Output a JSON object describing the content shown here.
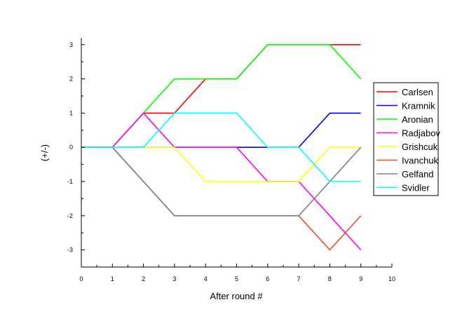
{
  "chart_data": {
    "type": "line",
    "title": "",
    "xlabel": "After round #",
    "ylabel": "(+/-)",
    "xlim": [
      0,
      10
    ],
    "ylim": [
      -3.5,
      3.2
    ],
    "xticks": [
      0,
      1,
      2,
      3,
      4,
      5,
      6,
      7,
      8,
      9,
      10
    ],
    "yticks": [
      -3,
      -2,
      -1,
      0,
      1,
      2,
      3
    ],
    "grid": false,
    "legend_position": "right",
    "x": [
      0,
      1,
      2,
      3,
      4,
      5,
      6,
      7,
      8,
      9
    ],
    "series": [
      {
        "name": "Carlsen",
        "color": "#ff0000",
        "values": [
          0,
          0,
          1,
          1,
          2,
          2,
          3,
          3,
          3,
          3
        ]
      },
      {
        "name": "Kramnik",
        "color": "#0000ff",
        "values": [
          0,
          0,
          0,
          0,
          0,
          0,
          0,
          0,
          1,
          1
        ]
      },
      {
        "name": "Aronian",
        "color": "#00ff00",
        "values": [
          0,
          0,
          1,
          2,
          2,
          2,
          3,
          3,
          3,
          2
        ]
      },
      {
        "name": "Radjabov",
        "color": "#ff00ff",
        "values": [
          0,
          0,
          1,
          0,
          0,
          0,
          -1,
          -1,
          -2,
          -3
        ]
      },
      {
        "name": "Grishcuk",
        "color": "#ffff00",
        "values": [
          0,
          0,
          0,
          0,
          -1,
          -1,
          -1,
          -1,
          0,
          0
        ]
      },
      {
        "name": "Ivanchuk",
        "color": "#e8502a",
        "values": [
          0,
          0,
          -1,
          -2,
          -2,
          -2,
          -2,
          -2,
          -3,
          -2
        ]
      },
      {
        "name": "Gelfand",
        "color": "#808080",
        "values": [
          0,
          0,
          -1,
          -2,
          -2,
          -2,
          -2,
          -2,
          -1,
          0
        ]
      },
      {
        "name": "Svidler",
        "color": "#00ffff",
        "values": [
          0,
          0,
          0,
          1,
          1,
          1,
          0,
          0,
          -1,
          -1
        ]
      }
    ]
  }
}
